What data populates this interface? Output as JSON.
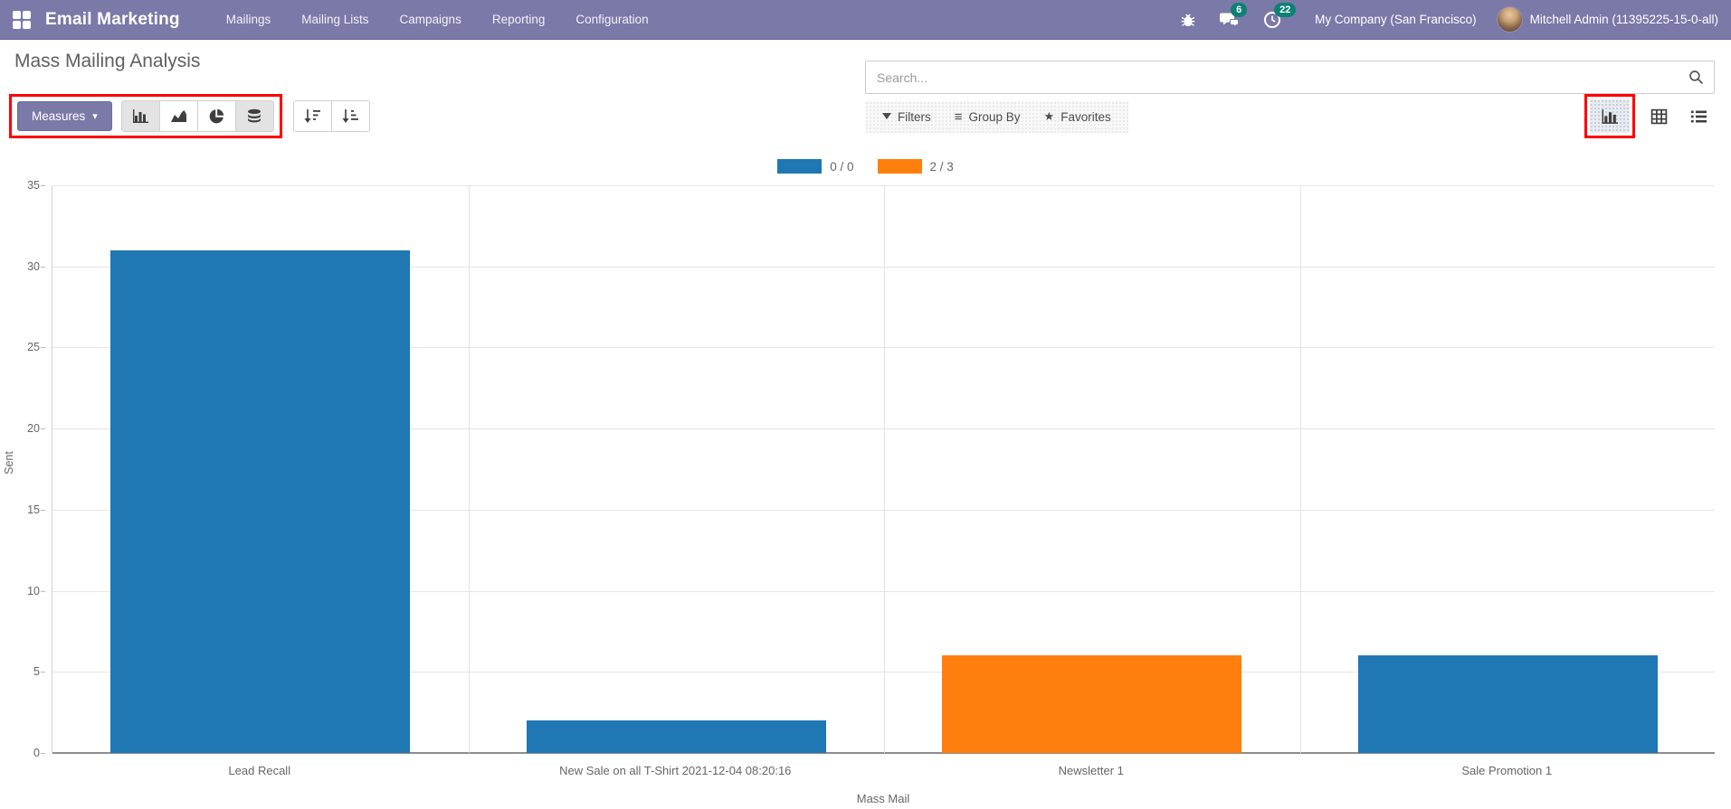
{
  "navbar": {
    "brand": "Email Marketing",
    "menu_items": [
      "Mailings",
      "Mailing Lists",
      "Campaigns",
      "Reporting",
      "Configuration"
    ],
    "messages_badge": "6",
    "activities_badge": "22",
    "company": "My Company (San Francisco)",
    "user": "Mitchell Admin (11395225-15-0-all)",
    "colors": {
      "bg": "#7B79A8",
      "badge": "#0D8173"
    }
  },
  "breadcrumb": {
    "title": "Mass Mailing Analysis"
  },
  "control_panel": {
    "measures_label": "Measures",
    "search_placeholder": "Search...",
    "filters_label": "Filters",
    "group_by_label": "Group By",
    "favorites_label": "Favorites"
  },
  "icons": {
    "measures_caret": "▾",
    "group_by_hamburger": "≡",
    "favorites_star": "★"
  },
  "chart_data": {
    "type": "bar",
    "title": "",
    "xlabel": "Mass Mail",
    "ylabel": "Sent",
    "ylim": [
      0,
      35
    ],
    "yticks": [
      0,
      5,
      10,
      15,
      20,
      25,
      30,
      35
    ],
    "grid": true,
    "legend_position": "top-center",
    "categories": [
      "Lead Recall",
      "New Sale on all T-Shirt 2021-12-04 08:20:16",
      "Newsletter 1",
      "Sale Promotion 1"
    ],
    "series": [
      {
        "name": "0 / 0",
        "color": "#1f77b4",
        "values": [
          31,
          2,
          null,
          6
        ]
      },
      {
        "name": "2 / 3",
        "color": "#ff7f0e",
        "values": [
          null,
          null,
          6,
          null
        ]
      }
    ]
  }
}
